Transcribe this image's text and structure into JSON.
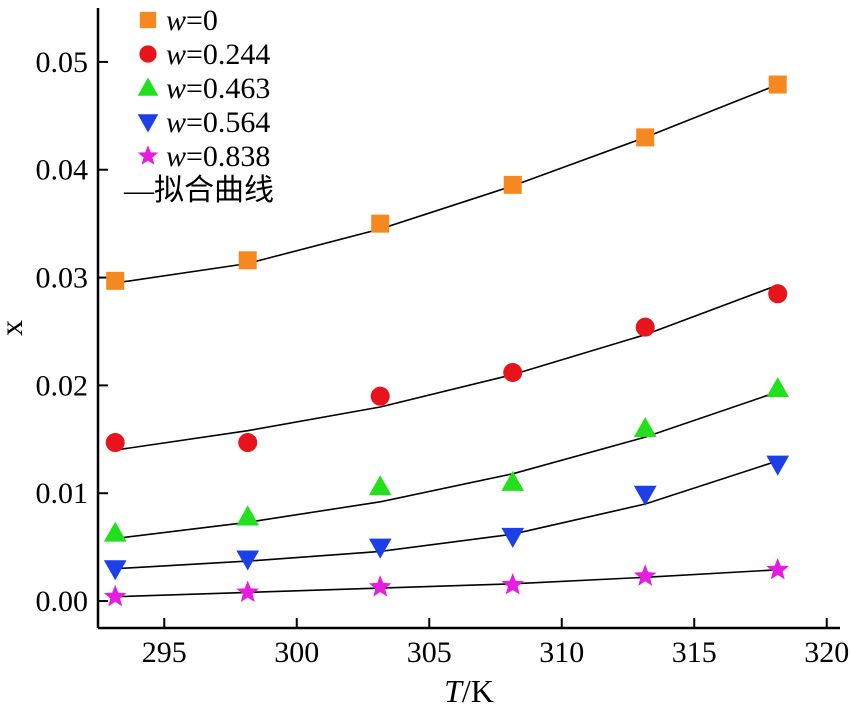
{
  "chart_data": {
    "type": "scatter",
    "xlabel_italic": "T",
    "xlabel_rest": "/K",
    "ylabel": "x",
    "xlim": [
      292.5,
      320.5
    ],
    "ylim": [
      -0.0025,
      0.055
    ],
    "xticks": [
      "295",
      "300",
      "305",
      "310",
      "315",
      "320"
    ],
    "xtick_values": [
      295,
      300,
      305,
      310,
      315,
      320
    ],
    "yticks": [
      "0.00",
      "0.01",
      "0.02",
      "0.03",
      "0.04",
      "0.05"
    ],
    "ytick_values": [
      0.0,
      0.01,
      0.02,
      0.03,
      0.04,
      0.05
    ],
    "legend_position": "top-left",
    "fit_label": "—拟合曲线",
    "x": [
      293.15,
      298.15,
      303.15,
      308.15,
      313.15,
      318.15
    ],
    "series": [
      {
        "name_italic": "w",
        "name_rest": "=0",
        "marker": "square",
        "color": "#F5891F",
        "values": [
          0.0297,
          0.0316,
          0.035,
          0.0386,
          0.043,
          0.0479
        ],
        "fit": [
          0.0295,
          0.0313,
          0.0345,
          0.0385,
          0.043,
          0.0479
        ]
      },
      {
        "name_italic": "w",
        "name_rest": "=0.244",
        "marker": "circle",
        "color": "#E8141B",
        "values": [
          0.0147,
          0.0147,
          0.019,
          0.0212,
          0.0254,
          0.0285
        ],
        "fit": [
          0.014,
          0.0158,
          0.018,
          0.021,
          0.0247,
          0.0293
        ]
      },
      {
        "name_italic": "w",
        "name_rest": "=0.463",
        "marker": "triangle-up",
        "color": "#22E01C",
        "values": [
          0.0063,
          0.0078,
          0.0106,
          0.011,
          0.016,
          0.0197
        ],
        "fit": [
          0.0058,
          0.0073,
          0.0092,
          0.0118,
          0.0152,
          0.0194
        ]
      },
      {
        "name_italic": "w",
        "name_rest": "=0.564",
        "marker": "triangle-down",
        "color": "#1C3FE8",
        "values": [
          0.003,
          0.0039,
          0.005,
          0.006,
          0.0099,
          0.0127
        ],
        "fit": [
          0.003,
          0.0037,
          0.0046,
          0.0062,
          0.009,
          0.013
        ]
      },
      {
        "name_italic": "w",
        "name_rest": "=0.838",
        "marker": "star",
        "color": "#E81CE0",
        "values": [
          0.0004,
          0.0008,
          0.0013,
          0.0015,
          0.0023,
          0.0029
        ],
        "fit": [
          0.0004,
          0.0008,
          0.0012,
          0.0016,
          0.0022,
          0.0029
        ]
      }
    ]
  }
}
